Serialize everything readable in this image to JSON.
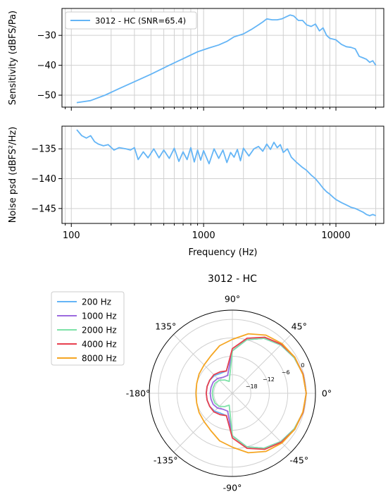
{
  "chart_data": [
    {
      "type": "line",
      "panel": "sensitivity",
      "xscale": "log",
      "xlim": [
        85,
        23000
      ],
      "ylim": [
        -54,
        -21
      ],
      "ylabel": "Sensitivity (dBFS/Pa)",
      "yticks": [
        -30,
        -40,
        -50
      ],
      "ytick_labels": [
        "−30",
        "−40",
        "−50"
      ],
      "grid": true,
      "legend": {
        "position": "upper-left",
        "entries": [
          "3012 - HC (SNR=65.4)"
        ]
      },
      "series": [
        {
          "name": "3012 - HC (SNR=65.4)",
          "color": "#64b5f6",
          "x": [
            110,
            140,
            180,
            230,
            300,
            400,
            550,
            700,
            900,
            1100,
            1300,
            1500,
            1700,
            2000,
            2300,
            2600,
            2800,
            3000,
            3300,
            3600,
            3900,
            4200,
            4500,
            4800,
            5200,
            5600,
            6000,
            6500,
            7000,
            7500,
            8000,
            8500,
            9000,
            10000,
            11000,
            12000,
            13000,
            14000,
            15000,
            16000,
            17000,
            18000,
            19000,
            20000
          ],
          "y": [
            -52.5,
            -51.8,
            -50,
            -47.8,
            -45.5,
            -43,
            -40,
            -37.8,
            -35.5,
            -34.2,
            -33.2,
            -32,
            -30.5,
            -29.5,
            -28,
            -26.5,
            -25.5,
            -24.5,
            -24.8,
            -24.8,
            -24.5,
            -23.8,
            -23.2,
            -23.5,
            -25,
            -25,
            -26.5,
            -27,
            -26.2,
            -28.5,
            -27.5,
            -30,
            -31,
            -31.5,
            -33,
            -33.8,
            -34,
            -34.5,
            -37,
            -37.5,
            -38,
            -39,
            -38.5,
            -40
          ]
        }
      ]
    },
    {
      "type": "line",
      "panel": "noise",
      "xscale": "log",
      "xlim": [
        85,
        23000
      ],
      "ylim": [
        -147.5,
        -131.2
      ],
      "xlabel": "Frequency (Hz)",
      "ylabel": "Noise psd (dBFS²/Hz)",
      "xticks": [
        100,
        1000,
        10000
      ],
      "xtick_labels": [
        "100",
        "1000",
        "10000"
      ],
      "yticks": [
        -135,
        -140,
        -145
      ],
      "ytick_labels": [
        "−135",
        "−140",
        "−145"
      ],
      "grid": true,
      "series": [
        {
          "name": "3012 - HC",
          "color": "#64b5f6",
          "x": [
            110,
            120,
            130,
            140,
            150,
            160,
            175,
            190,
            210,
            230,
            260,
            280,
            300,
            320,
            350,
            380,
            420,
            460,
            500,
            550,
            600,
            650,
            700,
            750,
            800,
            850,
            900,
            950,
            1000,
            1100,
            1200,
            1300,
            1400,
            1500,
            1600,
            1700,
            1800,
            1900,
            2000,
            2200,
            2400,
            2600,
            2800,
            3000,
            3200,
            3400,
            3600,
            3800,
            4000,
            4300,
            4600,
            5000,
            5500,
            6000,
            6500,
            7000,
            7500,
            8000,
            8500,
            9000,
            9500,
            10000,
            11000,
            12000,
            13000,
            14000,
            15000,
            16000,
            17000,
            18000,
            19000,
            20000
          ],
          "y": [
            -131.8,
            -132.8,
            -133.2,
            -132.8,
            -133.8,
            -134.2,
            -134.5,
            -134.3,
            -135.2,
            -134.8,
            -135.0,
            -135.2,
            -134.8,
            -136.8,
            -135.5,
            -136.5,
            -135.0,
            -136.5,
            -135.2,
            -136.6,
            -134.9,
            -137.1,
            -135.5,
            -136.8,
            -134.8,
            -137.2,
            -135.2,
            -136.9,
            -135.3,
            -137.5,
            -135.0,
            -136.6,
            -135.2,
            -137.3,
            -135.6,
            -136.4,
            -135.1,
            -137.0,
            -134.9,
            -136.2,
            -135.0,
            -134.6,
            -135.4,
            -134.2,
            -135.1,
            -133.9,
            -134.8,
            -134.3,
            -135.6,
            -135.0,
            -136.4,
            -137.2,
            -138.0,
            -138.6,
            -139.4,
            -140.0,
            -140.8,
            -141.6,
            -142.2,
            -142.6,
            -143.1,
            -143.5,
            -144.0,
            -144.4,
            -144.8,
            -145.0,
            -145.3,
            -145.6,
            -146.0,
            -146.2,
            -146.0,
            -146.2
          ]
        }
      ]
    },
    {
      "type": "polar",
      "title": "3012 - HC",
      "rlim": [
        -24,
        3
      ],
      "rticks": [
        -18,
        -12,
        -6,
        0
      ],
      "rtick_labels": [
        "−18",
        "−12",
        "−6",
        "0"
      ],
      "angle_ticks": [
        0,
        45,
        90,
        135,
        180,
        225,
        270,
        315
      ],
      "angle_tick_labels": [
        "0°",
        "45°",
        "90°",
        "135°",
        "-180°",
        "-135°",
        "-90°",
        "-45°"
      ],
      "legend": {
        "position": "upper-left",
        "entries": [
          "200 Hz",
          "1000 Hz",
          "2000 Hz",
          "4000 Hz",
          "8000 Hz"
        ]
      },
      "angles_deg": [
        0,
        15,
        30,
        45,
        60,
        75,
        90,
        105,
        120,
        135,
        150,
        165,
        180,
        195,
        210,
        225,
        240,
        255,
        270,
        285,
        300,
        315,
        330,
        345
      ],
      "series": [
        {
          "name": "200 Hz",
          "color": "#64b5f6",
          "values": [
            0,
            -0.2,
            -0.8,
            -1.8,
            -3.4,
            -6,
            -10.2,
            -16.5,
            -16.5,
            -15.8,
            -15.5,
            -15.5,
            -15.5,
            -15.5,
            -15.5,
            -15.8,
            -16.5,
            -16.5,
            -10.2,
            -6,
            -3.4,
            -1.8,
            -0.8,
            -0.2
          ]
        },
        {
          "name": "1000 Hz",
          "color": "#9c6ade",
          "values": [
            0,
            -0.2,
            -0.8,
            -1.8,
            -3.4,
            -6,
            -10.2,
            -18,
            -18,
            -17.2,
            -16.8,
            -16.8,
            -16.8,
            -16.8,
            -16.8,
            -17.2,
            -18,
            -18,
            -10.2,
            -6,
            -3.4,
            -1.8,
            -0.8,
            -0.2
          ]
        },
        {
          "name": "2000 Hz",
          "color": "#7ee2a8",
          "values": [
            0,
            -0.2,
            -0.8,
            -1.8,
            -3.4,
            -6,
            -10.2,
            -20,
            -19,
            -18,
            -17.5,
            -17.5,
            -17.5,
            -17.5,
            -17.5,
            -18,
            -19,
            -20,
            -10.2,
            -6,
            -3.4,
            -1.8,
            -0.8,
            -0.2
          ]
        },
        {
          "name": "4000 Hz",
          "color": "#e8404f",
          "values": [
            0,
            -0.2,
            -0.6,
            -1.5,
            -3,
            -5.5,
            -9.5,
            -16.5,
            -16,
            -15.5,
            -15.5,
            -15.5,
            -15.5,
            -15.5,
            -15.5,
            -15.5,
            -16,
            -16.5,
            -9.5,
            -5.5,
            -3,
            -1.5,
            -0.6,
            -0.2
          ]
        },
        {
          "name": "8000 Hz",
          "color": "#f5a623",
          "values": [
            0,
            -0.3,
            -0.6,
            -1.2,
            -2.2,
            -4,
            -6.5,
            -8,
            -10,
            -11,
            -11.5,
            -12,
            -12.2,
            -12,
            -11.5,
            -11,
            -10,
            -8,
            -6.5,
            -4,
            -2.2,
            -1.2,
            -0.6,
            -0.3
          ]
        }
      ]
    }
  ]
}
